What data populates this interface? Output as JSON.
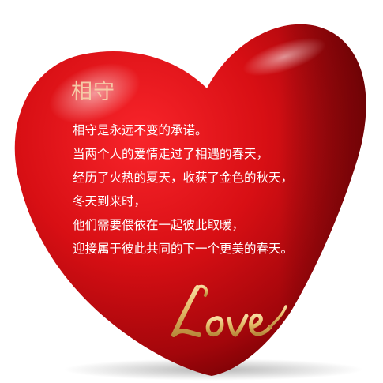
{
  "poem": {
    "title": "相守",
    "lines": [
      "相守是永远不变的承诺。",
      "当两个人的爱情走过了相遇的春天，",
      "经历了火热的夏天，收获了金色的秋天，",
      "冬天到来时，",
      "他们需要偎依在一起彼此取暖，",
      "迎接属于彼此共同的下一个更美的春天。"
    ]
  },
  "love_word": "Love",
  "colors": {
    "heart_red": "#d80f14",
    "heart_dark": "#7a0004",
    "title_peach": "#f6c9a6",
    "gold": "#e8c07a"
  }
}
